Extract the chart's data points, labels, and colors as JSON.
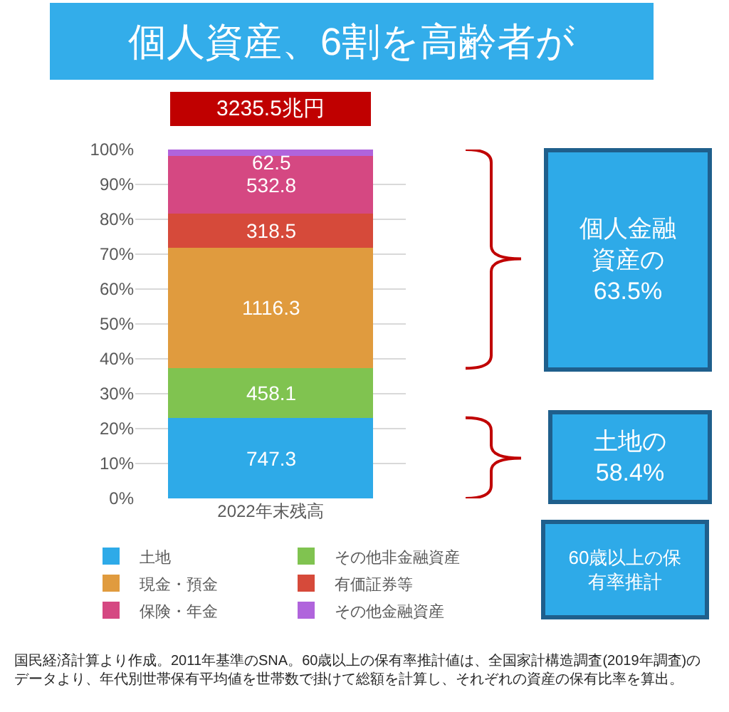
{
  "chart_data": {
    "type": "bar",
    "title": "個人資産、6割を高齢者が",
    "categories": [
      "2022年末残高"
    ],
    "stacked": true,
    "series": [
      {
        "name": "土地",
        "color": "#2eaae8",
        "values": [
          23.1
        ]
      },
      {
        "name": "その他非金融資産",
        "color": "#80c350",
        "values": [
          14.2
        ]
      },
      {
        "name": "現金・預金",
        "color": "#e09b3e",
        "values": [
          34.5
        ]
      },
      {
        "name": "有価証券等",
        "color": "#d64a3a",
        "values": [
          9.8
        ]
      },
      {
        "name": "保険・年金",
        "color": "#d54882",
        "values": [
          16.5
        ]
      },
      {
        "name": "その他金融資産",
        "color": "#b064dc",
        "values": [
          1.9
        ]
      }
    ],
    "ylim": [
      0,
      100
    ],
    "yticks": [
      {
        "value": 0,
        "label": "0%"
      },
      {
        "value": 10,
        "label": "10%"
      },
      {
        "value": 20,
        "label": "20%"
      },
      {
        "value": 30,
        "label": "30%"
      },
      {
        "value": 40,
        "label": "40%"
      },
      {
        "value": 50,
        "label": "50%"
      },
      {
        "value": 60,
        "label": "60%"
      },
      {
        "value": 70,
        "label": "70%"
      },
      {
        "value": 80,
        "label": "80%"
      },
      {
        "value": 90,
        "label": "90%"
      },
      {
        "value": 100,
        "label": "100%"
      }
    ],
    "grid": "y",
    "legend": "bottom",
    "annotations": [
      "747.3",
      "458.1",
      "1116.3",
      "318.5",
      "532.8",
      "62.5",
      {
        "text": "3235.5兆円",
        "x": "2022年末残高",
        "y": 100
      },
      "個人金融資産の63.5%",
      "土地の58.4%",
      "60歳以上の保有率推計",
      "国民経済計算より作成。2011年基準のSNA。60歳以上の保有率推計値は、全国家計構造調査(2019年調査)のデータより、年代別世帯保有平均値を世帯数で掛けて総額を計算し、それぞれの資産の保有比率を算出。"
    ]
  }
}
